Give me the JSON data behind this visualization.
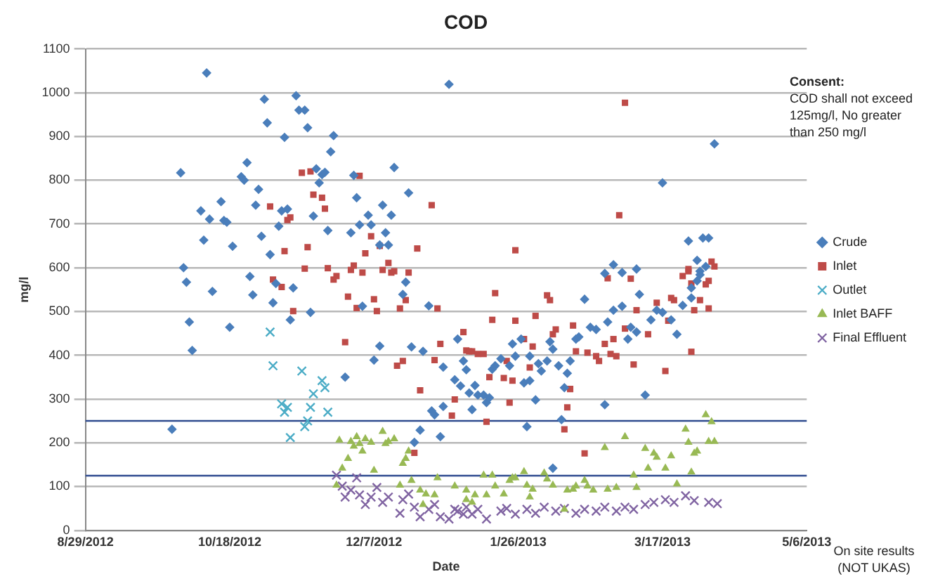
{
  "chart_data": {
    "type": "scatter",
    "title": "COD",
    "xlabel": "Date",
    "ylabel": "mg/l",
    "annotations": [
      "Consent:",
      "COD shall not exceed 125mg/l, No greater than 250 mg/l",
      "On site results (NOT UKAS)"
    ],
    "xlim": [
      "2012-08-29",
      "2013-05-06"
    ],
    "xticks": [
      {
        "value": "2012-08-29",
        "label": "8/29/2012"
      },
      {
        "value": "2012-10-18",
        "label": "10/18/2012"
      },
      {
        "value": "2012-12-07",
        "label": "12/7/2012"
      },
      {
        "value": "2013-01-26",
        "label": "1/26/2013"
      },
      {
        "value": "2013-03-17",
        "label": "3/17/2013"
      },
      {
        "value": "2013-05-06",
        "label": "5/6/2013"
      }
    ],
    "ylim": [
      0,
      1100
    ],
    "yticks": [
      0,
      100,
      200,
      300,
      400,
      500,
      600,
      700,
      800,
      900,
      1000,
      1100
    ],
    "grid": "y",
    "legend": "right",
    "ref_lines": [
      {
        "axis": "y",
        "value": 125,
        "color": "#2f4b8f"
      },
      {
        "axis": "y",
        "value": 250,
        "color": "#2f4b8f"
      }
    ],
    "series": [
      {
        "name": "Crude",
        "color": "#4a7ebb",
        "marker": "diamond",
        "x": [
          "2012-10-01",
          "2012-10-10",
          "2012-10-02",
          "2012-10-03",
          "2012-10-08",
          "2012-10-09",
          "2012-10-11",
          "2012-10-15",
          "2012-10-16",
          "2012-10-17",
          "2012-10-19",
          "2012-10-22",
          "2012-10-23",
          "2012-10-24",
          "2012-10-25",
          "2012-10-28",
          "2012-10-27",
          "2012-10-29",
          "2012-10-30",
          "2012-10-31",
          "2012-11-01",
          "2012-11-04",
          "2012-11-05",
          "2012-11-06",
          "2012-11-07",
          "2012-11-09",
          "2012-11-10",
          "2012-11-11",
          "2012-11-13",
          "2012-11-14",
          "2012-11-16",
          "2012-11-17",
          "2012-11-18",
          "2012-11-19",
          "2012-11-20",
          "2012-11-21",
          "2012-11-22",
          "2012-11-23",
          "2012-11-29",
          "2012-11-30",
          "2012-12-01",
          "2012-12-02",
          "2012-12-05",
          "2012-12-06",
          "2012-12-09",
          "2012-12-10",
          "2012-12-11",
          "2012-12-12",
          "2012-12-13",
          "2012-12-14",
          "2012-12-19",
          "2012-12-18",
          "2013-01-02",
          "2012-10-04",
          "2012-10-05",
          "2012-09-28",
          "2012-10-12",
          "2012-10-18",
          "2012-10-26",
          "2012-11-02",
          "2012-11-03",
          "2012-11-08",
          "2012-11-15",
          "2012-11-27",
          "2012-12-03",
          "2012-12-07",
          "2012-12-09",
          "2012-12-17",
          "2012-12-20",
          "2012-12-21",
          "2012-12-23",
          "2012-12-24",
          "2012-12-26",
          "2012-12-27",
          "2012-12-28",
          "2012-12-30",
          "2012-12-31",
          "2012-12-31",
          "2013-01-05",
          "2013-01-07",
          "2013-01-08",
          "2013-01-04",
          "2013-01-06",
          "2013-01-09",
          "2013-01-10",
          "2013-01-11",
          "2013-01-12",
          "2013-01-14",
          "2013-01-15",
          "2013-01-16",
          "2013-01-17",
          "2013-01-18",
          "2013-01-20",
          "2013-01-23",
          "2013-01-24",
          "2013-01-25",
          "2013-01-27",
          "2013-01-28",
          "2013-01-29",
          "2013-01-30",
          "2013-01-30",
          "2013-02-01",
          "2013-02-02",
          "2013-02-03",
          "2013-02-05",
          "2013-02-06",
          "2013-02-07",
          "2013-02-07",
          "2013-02-09",
          "2013-02-10",
          "2013-02-11",
          "2013-02-12",
          "2013-02-13",
          "2013-02-15",
          "2013-02-16",
          "2013-02-18",
          "2013-02-20",
          "2013-02-22",
          "2013-02-25",
          "2013-02-26",
          "2013-02-28",
          "2013-03-03",
          "2013-03-05",
          "2013-03-06",
          "2013-03-08",
          "2013-03-09",
          "2013-03-11",
          "2013-03-13",
          "2013-03-15",
          "2013-03-17",
          "2013-03-20",
          "2013-03-22",
          "2013-03-24",
          "2013-03-27",
          "2013-03-29",
          "2013-03-30",
          "2013-04-01",
          "2013-04-04",
          "2013-03-17",
          "2013-03-26",
          "2013-03-31",
          "2013-04-02",
          "2013-03-29",
          "2013-02-28",
          "2013-02-25",
          "2013-03-03",
          "2013-03-08",
          "2013-03-27",
          "2013-03-30"
        ],
        "values": [
          817,
          1045,
          600,
          567,
          730,
          663,
          711,
          751,
          708,
          704,
          649,
          808,
          800,
          840,
          580,
          779,
          743,
          672,
          985,
          931,
          630,
          695,
          730,
          898,
          734,
          554,
          993,
          960,
          960,
          920,
          718,
          826,
          794,
          813,
          818,
          685,
          865,
          902,
          680,
          811,
          760,
          698,
          720,
          698,
          652,
          743,
          680,
          652,
          720,
          829,
          771,
          567,
          1019,
          476,
          411,
          231,
          546,
          464,
          538,
          520,
          564,
          481,
          498,
          350,
          512,
          389,
          421,
          539,
          419,
          201,
          229,
          409,
          513,
          273,
          264,
          214,
          283,
          373,
          437,
          387,
          367,
          344,
          330,
          314,
          276,
          331,
          309,
          309,
          292,
          303,
          368,
          376,
          392,
          376,
          426,
          398,
          437,
          337,
          237,
          342,
          398,
          298,
          381,
          364,
          387,
          431,
          142,
          414,
          376,
          253,
          326,
          359,
          387,
          437,
          442,
          528,
          464,
          459,
          287,
          476,
          503,
          512,
          437,
          464,
          453,
          539,
          309,
          481,
          503,
          498,
          481,
          448,
          514,
          531,
          570,
          592,
          603,
          883,
          794,
          661,
          668,
          668,
          617,
          607,
          587,
          589,
          597,
          554,
          584
        ]
      },
      {
        "name": "Inlet",
        "color": "#be4b48",
        "marker": "square",
        "x": [
          "2012-11-01",
          "2012-11-06",
          "2012-11-07",
          "2012-11-08",
          "2012-11-12",
          "2012-11-15",
          "2012-11-16",
          "2012-11-19",
          "2012-11-20",
          "2012-11-14",
          "2012-11-13",
          "2012-11-21",
          "2012-11-23",
          "2012-11-29",
          "2012-11-30",
          "2012-12-02",
          "2012-12-03",
          "2012-12-06",
          "2012-12-04",
          "2012-12-09",
          "2012-12-10",
          "2012-12-12",
          "2012-12-13",
          "2012-12-14",
          "2012-12-19",
          "2012-12-22",
          "2012-12-27",
          "2012-11-02",
          "2012-11-05",
          "2012-11-09",
          "2012-11-24",
          "2012-11-27",
          "2012-11-28",
          "2012-12-01",
          "2012-12-07",
          "2012-12-08",
          "2012-12-15",
          "2012-12-16",
          "2012-12-17",
          "2012-12-18",
          "2012-12-23",
          "2012-12-21",
          "2012-12-28",
          "2012-12-29",
          "2012-12-30",
          "2013-01-03",
          "2013-01-04",
          "2013-01-07",
          "2013-01-08",
          "2013-01-09",
          "2013-01-10",
          "2013-01-12",
          "2013-01-14",
          "2013-01-15",
          "2013-01-16",
          "2013-01-17",
          "2013-01-18",
          "2013-01-21",
          "2013-01-22",
          "2013-01-23",
          "2013-01-24",
          "2013-01-25",
          "2013-01-28",
          "2013-01-30",
          "2013-01-31",
          "2013-02-01",
          "2013-02-05",
          "2013-02-06",
          "2013-02-07",
          "2013-02-08",
          "2013-02-11",
          "2013-02-12",
          "2013-02-13",
          "2013-02-14",
          "2013-02-15",
          "2013-02-18",
          "2013-02-19",
          "2013-02-22",
          "2013-02-23",
          "2013-02-25",
          "2013-02-27",
          "2013-02-28",
          "2013-03-01",
          "2013-03-04",
          "2013-03-07",
          "2013-03-08",
          "2013-03-12",
          "2013-03-15",
          "2013-03-18",
          "2013-03-19",
          "2013-03-20",
          "2013-03-21",
          "2013-03-27",
          "2013-03-28",
          "2013-03-30",
          "2013-04-02",
          "2013-04-02",
          "2013-03-26",
          "2013-03-04",
          "2013-03-02",
          "2013-01-25",
          "2013-04-03",
          "2013-04-04",
          "2013-03-26",
          "2013-03-24",
          "2013-03-27",
          "2013-04-01",
          "2013-02-26",
          "2013-03-06"
        ],
        "values": [
          740,
          638,
          709,
          715,
          817,
          820,
          767,
          760,
          735,
          647,
          598,
          599,
          573,
          595,
          605,
          810,
          589,
          672,
          633,
          650,
          595,
          611,
          589,
          592,
          589,
          644,
          743,
          573,
          556,
          501,
          581,
          430,
          534,
          508,
          528,
          501,
          376,
          507,
          387,
          526,
          320,
          177,
          389,
          507,
          426,
          262,
          299,
          453,
          411,
          409,
          409,
          403,
          403,
          248,
          350,
          481,
          542,
          348,
          387,
          292,
          342,
          479,
          437,
          372,
          420,
          490,
          537,
          526,
          448,
          459,
          231,
          281,
          323,
          468,
          409,
          176,
          406,
          398,
          387,
          426,
          403,
          437,
          398,
          461,
          379,
          503,
          448,
          520,
          364,
          479,
          531,
          526,
          408,
          503,
          526,
          507,
          570,
          592,
          977,
          720,
          640,
          614,
          603,
          597,
          581,
          564,
          562,
          576,
          575
        ]
      },
      {
        "name": "Outlet",
        "color": "#4bacc6",
        "marker": "cross",
        "x": [
          "2012-11-01",
          "2012-11-02",
          "2012-11-05",
          "2012-11-07",
          "2012-11-06",
          "2012-11-08",
          "2012-11-12",
          "2012-11-13",
          "2012-11-14",
          "2012-11-15",
          "2012-11-16",
          "2012-11-19",
          "2012-11-20",
          "2012-11-21"
        ],
        "values": [
          453,
          376,
          289,
          281,
          270,
          212,
          364,
          237,
          250,
          281,
          312,
          342,
          326,
          270
        ]
      },
      {
        "name": "Inlet BAFF",
        "color": "#98b954",
        "marker": "triangle",
        "x": [
          "2012-11-24",
          "2012-11-25",
          "2012-11-26",
          "2012-11-28",
          "2012-11-29",
          "2012-11-30",
          "2012-12-01",
          "2012-12-02",
          "2012-12-03",
          "2012-12-04",
          "2012-12-06",
          "2012-12-07",
          "2012-12-10",
          "2012-12-11",
          "2012-12-12",
          "2012-12-14",
          "2012-12-16",
          "2012-12-17",
          "2012-12-18",
          "2012-12-19",
          "2012-12-20",
          "2012-12-23",
          "2012-12-24",
          "2012-12-25",
          "2012-12-28",
          "2012-12-29",
          "2013-01-04",
          "2013-01-08",
          "2013-01-08",
          "2013-01-10",
          "2013-01-11",
          "2013-01-14",
          "2013-01-15",
          "2013-01-17",
          "2013-01-18",
          "2013-01-21",
          "2013-01-23",
          "2013-01-24",
          "2013-01-25",
          "2013-01-28",
          "2013-01-29",
          "2013-01-30",
          "2013-01-31",
          "2013-02-04",
          "2013-02-05",
          "2013-02-07",
          "2013-02-11",
          "2013-02-12",
          "2013-02-14",
          "2013-02-15",
          "2013-02-18",
          "2013-02-19",
          "2013-02-21",
          "2013-02-25",
          "2013-02-26",
          "2013-03-01",
          "2013-03-04",
          "2013-03-07",
          "2013-03-08",
          "2013-03-11",
          "2013-03-12",
          "2013-03-14",
          "2013-03-15",
          "2013-03-18",
          "2013-03-20",
          "2013-03-22",
          "2013-03-25",
          "2013-03-26",
          "2013-03-27",
          "2013-03-28",
          "2013-03-29",
          "2013-04-01",
          "2013-04-02",
          "2013-04-03",
          "2013-04-04"
        ],
        "values": [
          103,
          206,
          142,
          164,
          203,
          192,
          214,
          198,
          181,
          209,
          201,
          137,
          226,
          198,
          203,
          209,
          103,
          153,
          164,
          181,
          114,
          92,
          59,
          83,
          81,
          120,
          101,
          70,
          92,
          64,
          81,
          126,
          81,
          126,
          101,
          83,
          114,
          120,
          120,
          134,
          103,
          76,
          94,
          131,
          117,
          103,
          48,
          92,
          94,
          101,
          114,
          101,
          92,
          189,
          94,
          98,
          214,
          126,
          98,
          187,
          142,
          176,
          167,
          142,
          170,
          106,
          231,
          201,
          133,
          176,
          181,
          264,
          203,
          248,
          203
        ]
      },
      {
        "name": "Final Effluent",
        "color": "#8064a2",
        "marker": "cross",
        "x": [
          "2012-11-24",
          "2012-11-26",
          "2012-11-27",
          "2012-11-29",
          "2012-12-01",
          "2012-12-02",
          "2012-12-04",
          "2012-12-06",
          "2012-12-08",
          "2012-12-10",
          "2012-12-12",
          "2012-12-16",
          "2012-12-17",
          "2012-12-19",
          "2012-12-21",
          "2012-12-23",
          "2012-12-26",
          "2012-12-28",
          "2012-12-30",
          "2013-01-02",
          "2013-01-04",
          "2013-01-07",
          "2013-01-05",
          "2013-01-08",
          "2013-01-10",
          "2013-01-12",
          "2013-01-15",
          "2013-01-20",
          "2013-01-22",
          "2013-01-25",
          "2013-01-29",
          "2013-02-01",
          "2013-02-04",
          "2013-02-08",
          "2013-02-11",
          "2013-02-15",
          "2013-02-18",
          "2013-02-22",
          "2013-02-25",
          "2013-03-01",
          "2013-03-04",
          "2013-03-07",
          "2013-03-11",
          "2013-03-14",
          "2013-03-18",
          "2013-03-21",
          "2013-03-25",
          "2013-03-28",
          "2013-04-02",
          "2013-04-05"
        ],
        "values": [
          126,
          101,
          76,
          92,
          120,
          81,
          59,
          76,
          98,
          64,
          76,
          39,
          70,
          83,
          53,
          31,
          48,
          59,
          31,
          26,
          48,
          37,
          44,
          53,
          37,
          48,
          26,
          44,
          50,
          37,
          48,
          39,
          53,
          44,
          50,
          39,
          48,
          44,
          53,
          44,
          53,
          48,
          59,
          64,
          70,
          64,
          79,
          68,
          64,
          61
        ]
      }
    ]
  }
}
